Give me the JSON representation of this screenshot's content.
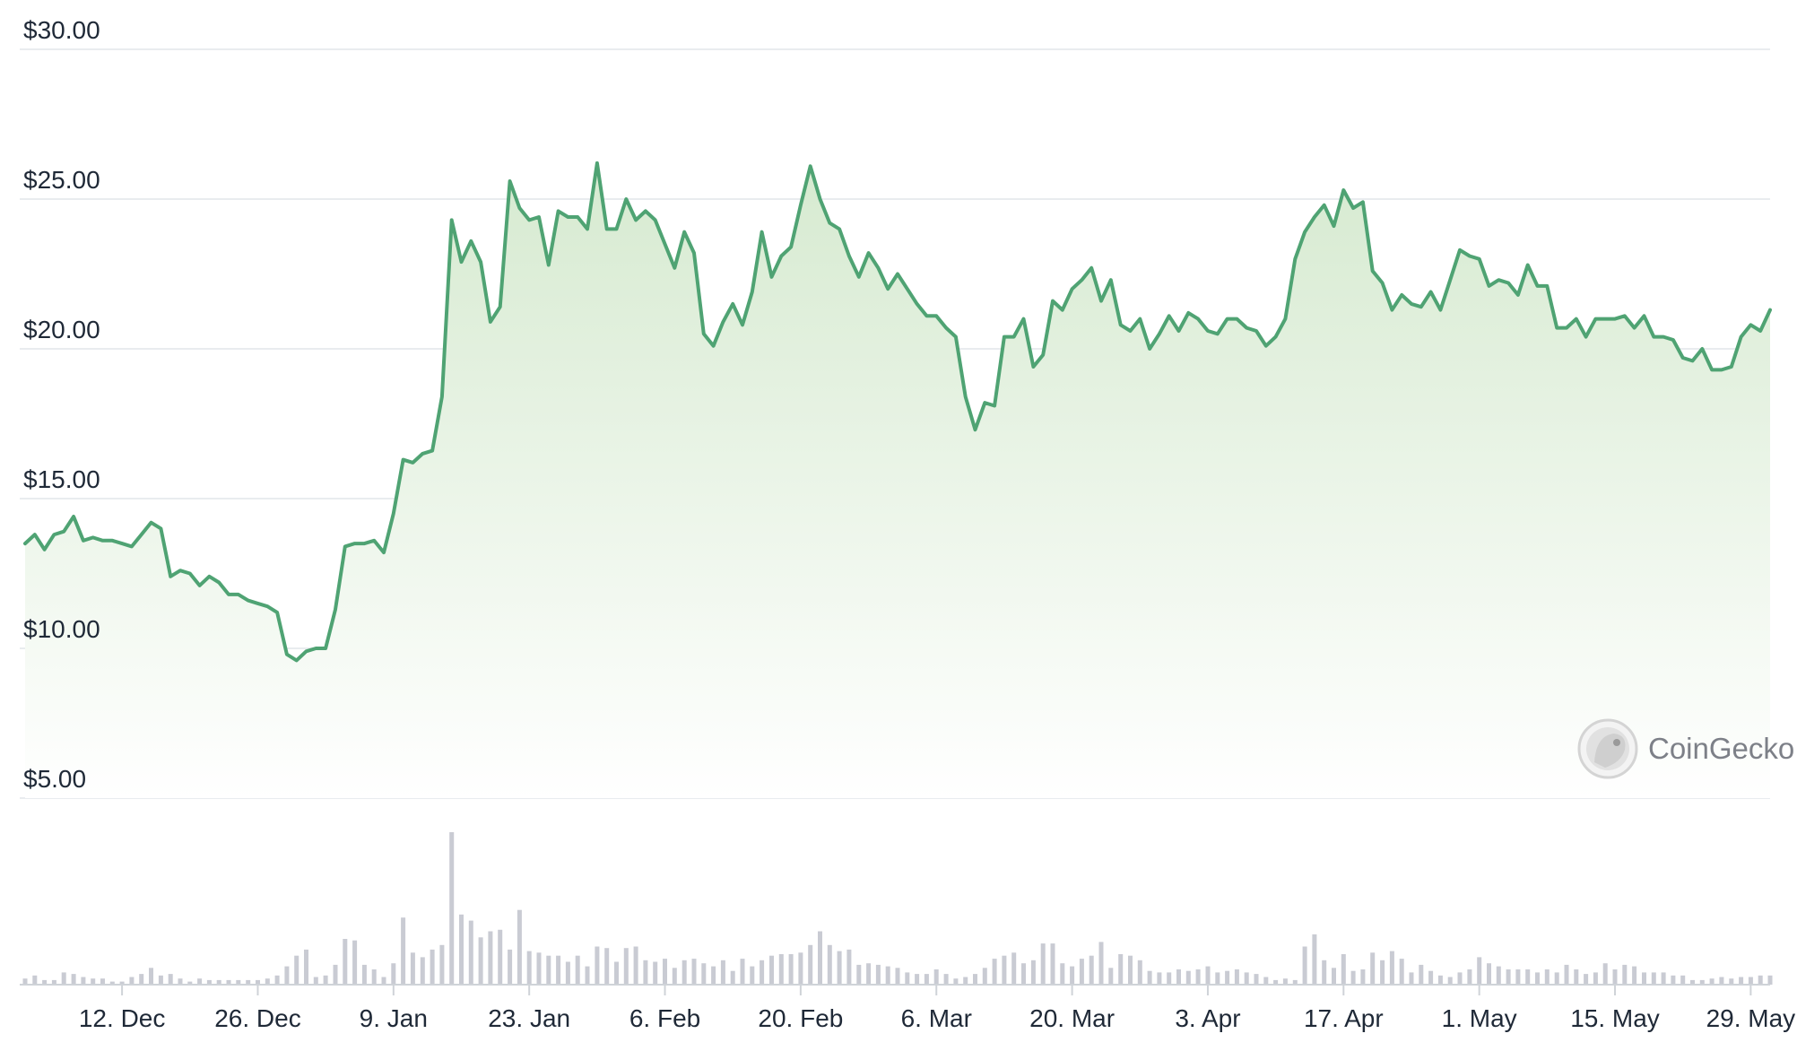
{
  "watermark": {
    "text": "CoinGecko"
  },
  "colors": {
    "line": "#4fa373",
    "fill_top": "#d9ecd3",
    "grid": "#e9ecef",
    "volume": "#c9cbd3",
    "text": "#1f2937"
  },
  "chart_data": {
    "type": "area",
    "currency_format": "$",
    "yticks": [
      "$5.00",
      "$10.00",
      "$15.00",
      "$20.00",
      "$25.00",
      "$30.00"
    ],
    "ytick_values": [
      5,
      10,
      15,
      20,
      25,
      30
    ],
    "ylim": [
      5,
      30
    ],
    "xticks": [
      {
        "label": "12. Dec",
        "day": 12
      },
      {
        "label": "26. Dec",
        "day": 26
      },
      {
        "label": "9. Jan",
        "day": 40
      },
      {
        "label": "23. Jan",
        "day": 54
      },
      {
        "label": "6. Feb",
        "day": 68
      },
      {
        "label": "20. Feb",
        "day": 82
      },
      {
        "label": "6. Mar",
        "day": 96
      },
      {
        "label": "20. Mar",
        "day": 110
      },
      {
        "label": "3. Apr",
        "day": 124
      },
      {
        "label": "17. Apr",
        "day": 138
      },
      {
        "label": "1. May",
        "day": 152
      },
      {
        "label": "15. May",
        "day": 166
      },
      {
        "label": "29. May",
        "day": 180
      }
    ],
    "xlim": [
      2,
      182
    ],
    "series": [
      {
        "values": [
          [
            2,
            13.5
          ],
          [
            3,
            13.8
          ],
          [
            4,
            13.3
          ],
          [
            5,
            13.8
          ],
          [
            6,
            13.9
          ],
          [
            7,
            14.4
          ],
          [
            8,
            13.6
          ],
          [
            9,
            13.7
          ],
          [
            10,
            13.6
          ],
          [
            11,
            13.6
          ],
          [
            12,
            13.5
          ],
          [
            13,
            13.4
          ],
          [
            14,
            13.8
          ],
          [
            15,
            14.2
          ],
          [
            16,
            14.0
          ],
          [
            17,
            12.4
          ],
          [
            18,
            12.6
          ],
          [
            19,
            12.5
          ],
          [
            20,
            12.1
          ],
          [
            21,
            12.4
          ],
          [
            22,
            12.2
          ],
          [
            23,
            11.8
          ],
          [
            24,
            11.8
          ],
          [
            25,
            11.6
          ],
          [
            26,
            11.5
          ],
          [
            27,
            11.4
          ],
          [
            28,
            11.2
          ],
          [
            29,
            9.8
          ],
          [
            30,
            9.6
          ],
          [
            31,
            9.9
          ],
          [
            32,
            10.0
          ],
          [
            33,
            10.0
          ],
          [
            34,
            11.3
          ],
          [
            35,
            13.4
          ],
          [
            36,
            13.5
          ],
          [
            37,
            13.5
          ],
          [
            38,
            13.6
          ],
          [
            39,
            13.2
          ],
          [
            40,
            14.5
          ],
          [
            41,
            16.3
          ],
          [
            42,
            16.2
          ],
          [
            43,
            16.5
          ],
          [
            44,
            16.6
          ],
          [
            45,
            18.4
          ],
          [
            46,
            24.3
          ],
          [
            47,
            22.9
          ],
          [
            48,
            23.6
          ],
          [
            49,
            22.9
          ],
          [
            50,
            20.9
          ],
          [
            51,
            21.4
          ],
          [
            52,
            25.6
          ],
          [
            53,
            24.7
          ],
          [
            54,
            24.3
          ],
          [
            55,
            24.4
          ],
          [
            56,
            22.8
          ],
          [
            57,
            24.6
          ],
          [
            58,
            24.4
          ],
          [
            59,
            24.4
          ],
          [
            60,
            24.0
          ],
          [
            61,
            26.2
          ],
          [
            62,
            24.0
          ],
          [
            63,
            24.0
          ],
          [
            64,
            25.0
          ],
          [
            65,
            24.3
          ],
          [
            66,
            24.6
          ],
          [
            67,
            24.3
          ],
          [
            68,
            23.5
          ],
          [
            69,
            22.7
          ],
          [
            70,
            23.9
          ],
          [
            71,
            23.2
          ],
          [
            72,
            20.5
          ],
          [
            73,
            20.1
          ],
          [
            74,
            20.9
          ],
          [
            75,
            21.5
          ],
          [
            76,
            20.8
          ],
          [
            77,
            21.9
          ],
          [
            78,
            23.9
          ],
          [
            79,
            22.4
          ],
          [
            80,
            23.1
          ],
          [
            81,
            23.4
          ],
          [
            82,
            24.8
          ],
          [
            83,
            26.1
          ],
          [
            84,
            25.0
          ],
          [
            85,
            24.2
          ],
          [
            86,
            24.0
          ],
          [
            87,
            23.1
          ],
          [
            88,
            22.4
          ],
          [
            89,
            23.2
          ],
          [
            90,
            22.7
          ],
          [
            91,
            22.0
          ],
          [
            92,
            22.5
          ],
          [
            93,
            22.0
          ],
          [
            94,
            21.5
          ],
          [
            95,
            21.1
          ],
          [
            96,
            21.1
          ],
          [
            97,
            20.7
          ],
          [
            98,
            20.4
          ],
          [
            99,
            18.4
          ],
          [
            100,
            17.3
          ],
          [
            101,
            18.2
          ],
          [
            102,
            18.1
          ],
          [
            103,
            20.4
          ],
          [
            104,
            20.4
          ],
          [
            105,
            21.0
          ],
          [
            106,
            19.4
          ],
          [
            107,
            19.8
          ],
          [
            108,
            21.6
          ],
          [
            109,
            21.3
          ],
          [
            110,
            22.0
          ],
          [
            111,
            22.3
          ],
          [
            112,
            22.7
          ],
          [
            113,
            21.6
          ],
          [
            114,
            22.3
          ],
          [
            115,
            20.8
          ],
          [
            116,
            20.6
          ],
          [
            117,
            21.0
          ],
          [
            118,
            20.0
          ],
          [
            119,
            20.5
          ],
          [
            120,
            21.1
          ],
          [
            121,
            20.6
          ],
          [
            122,
            21.2
          ],
          [
            123,
            21.0
          ],
          [
            124,
            20.6
          ],
          [
            125,
            20.5
          ],
          [
            126,
            21.0
          ],
          [
            127,
            21.0
          ],
          [
            128,
            20.7
          ],
          [
            129,
            20.6
          ],
          [
            130,
            20.1
          ],
          [
            131,
            20.4
          ],
          [
            132,
            21.0
          ],
          [
            133,
            23.0
          ],
          [
            134,
            23.9
          ],
          [
            135,
            24.4
          ],
          [
            136,
            24.8
          ],
          [
            137,
            24.1
          ],
          [
            138,
            25.3
          ],
          [
            139,
            24.7
          ],
          [
            140,
            24.9
          ],
          [
            141,
            22.6
          ],
          [
            142,
            22.2
          ],
          [
            143,
            21.3
          ],
          [
            144,
            21.8
          ],
          [
            145,
            21.5
          ],
          [
            146,
            21.4
          ],
          [
            147,
            21.9
          ],
          [
            148,
            21.3
          ],
          [
            149,
            22.3
          ],
          [
            150,
            23.3
          ],
          [
            151,
            23.1
          ],
          [
            152,
            23.0
          ],
          [
            153,
            22.1
          ],
          [
            154,
            22.3
          ],
          [
            155,
            22.2
          ],
          [
            156,
            21.8
          ],
          [
            157,
            22.8
          ],
          [
            158,
            22.1
          ],
          [
            159,
            22.1
          ],
          [
            160,
            20.7
          ],
          [
            161,
            20.7
          ],
          [
            162,
            21.0
          ],
          [
            163,
            20.4
          ],
          [
            164,
            21.0
          ],
          [
            165,
            21.0
          ],
          [
            166,
            21.0
          ],
          [
            167,
            21.1
          ],
          [
            168,
            20.7
          ],
          [
            169,
            21.1
          ],
          [
            170,
            20.4
          ],
          [
            171,
            20.4
          ],
          [
            172,
            20.3
          ],
          [
            173,
            19.7
          ],
          [
            174,
            19.6
          ],
          [
            175,
            20.0
          ],
          [
            176,
            19.3
          ],
          [
            177,
            19.3
          ],
          [
            178,
            19.4
          ],
          [
            179,
            20.4
          ],
          [
            180,
            20.8
          ],
          [
            181,
            20.6
          ],
          [
            182,
            21.3
          ]
        ]
      }
    ],
    "volume": {
      "max": 100,
      "values": [
        4,
        6,
        3,
        3,
        8,
        7,
        5,
        4,
        4,
        2,
        2,
        5,
        7,
        11,
        6,
        7,
        4,
        2,
        4,
        3,
        3,
        3,
        3,
        3,
        3,
        4,
        6,
        12,
        19,
        23,
        5,
        6,
        13,
        30,
        29,
        13,
        10,
        5,
        14,
        44,
        21,
        18,
        23,
        26,
        100,
        46,
        42,
        31,
        35,
        36,
        23,
        49,
        22,
        21,
        19,
        19,
        15,
        19,
        12,
        25,
        24,
        15,
        24,
        25,
        16,
        15,
        17,
        11,
        16,
        17,
        14,
        12,
        16,
        9,
        17,
        12,
        16,
        19,
        20,
        20,
        21,
        26,
        35,
        26,
        22,
        23,
        13,
        14,
        13,
        12,
        11,
        8,
        7,
        7,
        10,
        7,
        4,
        5,
        7,
        11,
        17,
        19,
        21,
        14,
        16,
        27,
        27,
        14,
        12,
        17,
        19,
        28,
        11,
        20,
        19,
        16,
        9,
        8,
        8,
        10,
        9,
        10,
        12,
        8,
        9,
        10,
        8,
        7,
        5,
        3,
        4,
        3,
        25,
        33,
        16,
        11,
        20,
        9,
        10,
        21,
        16,
        22,
        17,
        8,
        13,
        9,
        6,
        5,
        8,
        10,
        18,
        14,
        12,
        10,
        10,
        10,
        8,
        10,
        8,
        13,
        10,
        7,
        8,
        14,
        10,
        13,
        12,
        8,
        8,
        8,
        6,
        6,
        3,
        3,
        4,
        5,
        4,
        5,
        5,
        6,
        6
      ]
    }
  }
}
